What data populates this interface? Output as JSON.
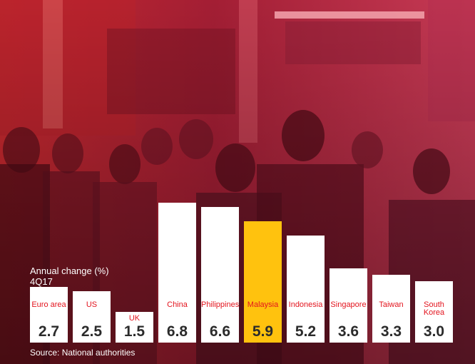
{
  "chart_data": {
    "type": "bar",
    "title": "Annual change (%)",
    "subtitle": "4Q17",
    "categories": [
      "Euro area",
      "US",
      "UK",
      "China",
      "Philippines",
      "Malaysia",
      "Indonesia",
      "Singapore",
      "Taiwan",
      "South Korea"
    ],
    "values": [
      2.7,
      2.5,
      1.5,
      6.8,
      6.6,
      5.9,
      5.2,
      3.6,
      3.3,
      3.0
    ],
    "value_labels": [
      "2.7",
      "2.5",
      "1.5",
      "6.8",
      "6.6",
      "5.9",
      "5.2",
      "3.6",
      "3.3",
      "3.0"
    ],
    "highlight": "Malaysia",
    "colors": {
      "bar": "#ffffff",
      "highlight": "#ffc20e",
      "label": "#e3141e",
      "value": "#2b2b2b"
    },
    "source": "Source: National authorities"
  },
  "background": {
    "description_icon": "crowd-photo",
    "tint": "#8c1830"
  }
}
